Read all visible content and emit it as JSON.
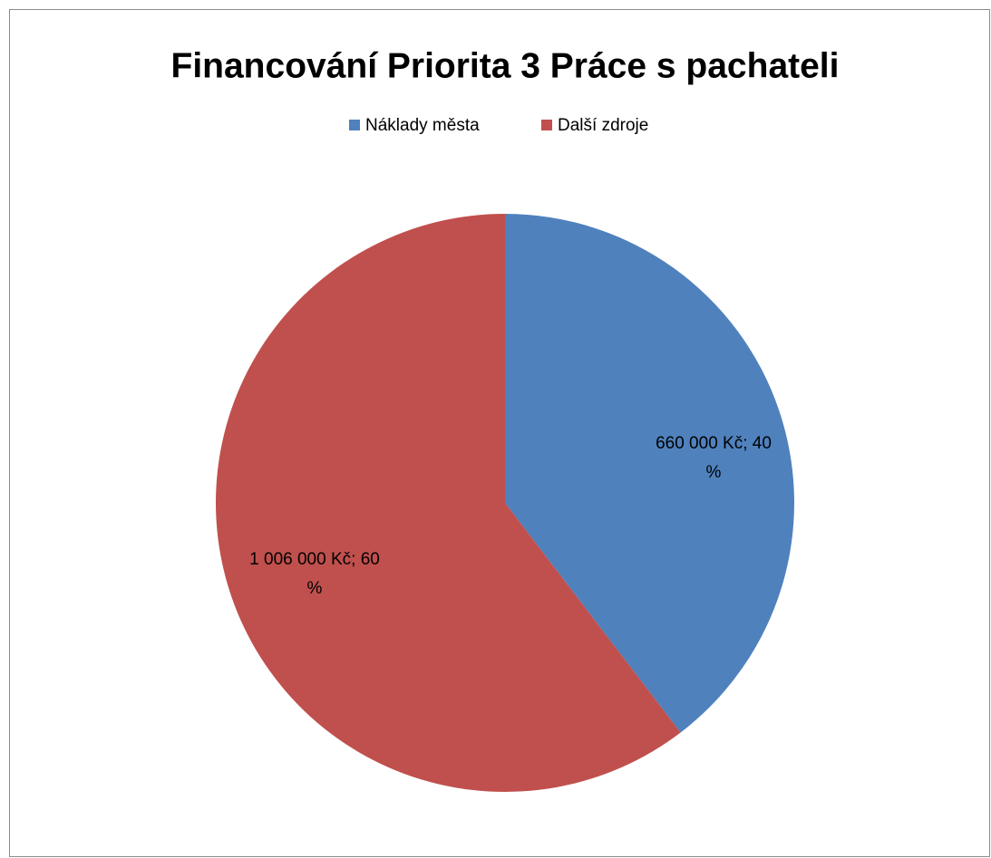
{
  "chart_data": {
    "type": "pie",
    "title": "Financování Priorita 3  Práce s pachateli",
    "categories": [
      "Náklady města",
      "Další zdroje"
    ],
    "values": [
      660000,
      1006000
    ],
    "value_labels": [
      "660 000 Kč; 40 %",
      "1 006 000 Kč; 60 %"
    ],
    "colors": [
      "#4f81bd",
      "#c0504d"
    ],
    "legend": "top"
  }
}
